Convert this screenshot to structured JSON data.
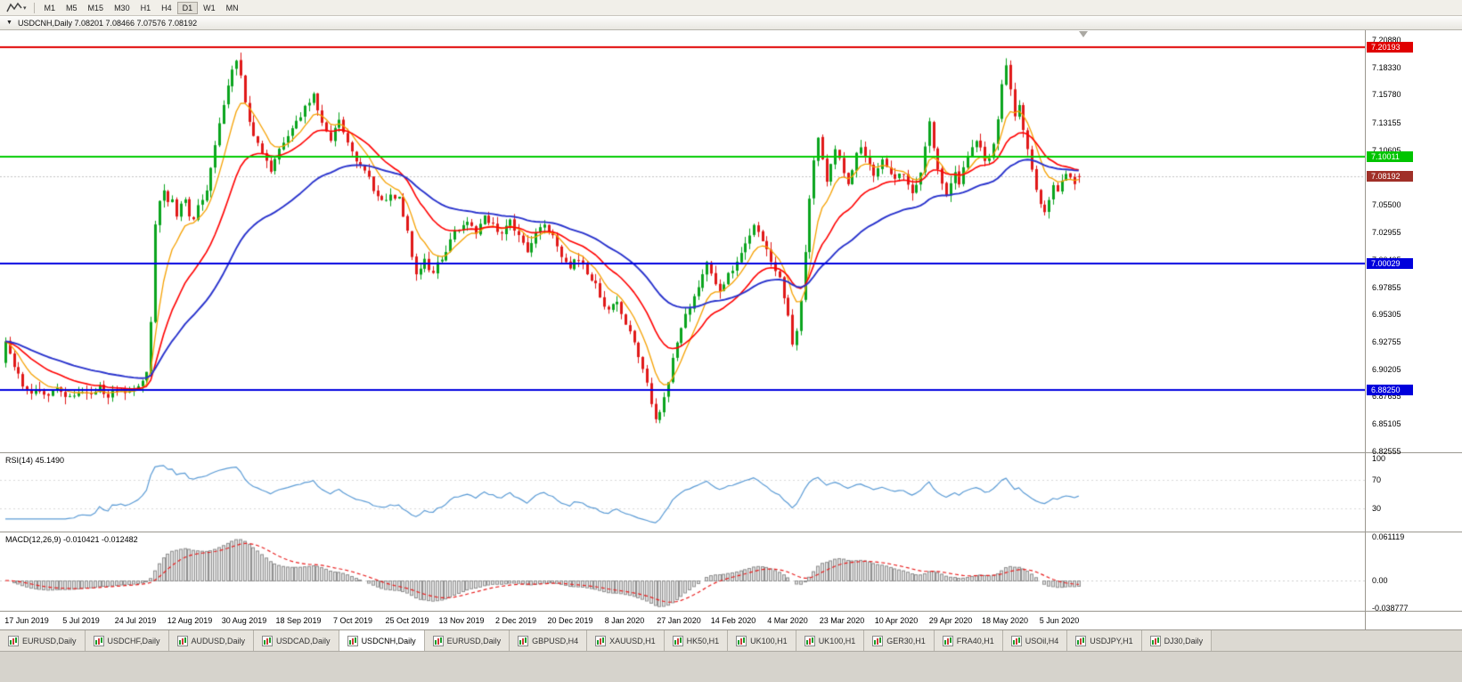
{
  "toolbar": {
    "timeframes": [
      "M1",
      "M5",
      "M15",
      "M30",
      "H1",
      "H4",
      "D1",
      "W1",
      "MN"
    ],
    "active_timeframe": "D1"
  },
  "chart_window": {
    "title": "USDCNH,Daily 7.08201 7.08466 7.07576 7.08192",
    "symbol": "USDCNH",
    "period": "Daily",
    "ohlc": {
      "open": "7.08201",
      "high": "7.08466",
      "low": "7.07576",
      "close": "7.08192"
    }
  },
  "price_axis": {
    "ticks": [
      "7.20880",
      "7.18330",
      "7.15780",
      "7.13155",
      "7.10605",
      "7.08055",
      "7.05500",
      "7.02955",
      "7.00405",
      "6.97855",
      "6.95305",
      "6.92755",
      "6.90205",
      "6.87655",
      "6.85105",
      "6.82555"
    ],
    "tags": [
      {
        "label": "7.20193",
        "value": 7.20193,
        "color": "#e00000",
        "type": "resistance-line"
      },
      {
        "label": "7.10011",
        "value": 7.10011,
        "color": "#00c400",
        "type": "resistance-line"
      },
      {
        "label": "7.08192",
        "value": 7.08192,
        "color": "#a03028",
        "type": "current-price"
      },
      {
        "label": "7.00029",
        "value": 7.00029,
        "color": "#0000dc",
        "type": "support-line"
      },
      {
        "label": "6.88250",
        "value": 6.8825,
        "color": "#0000dc",
        "type": "support-line"
      }
    ]
  },
  "date_axis": {
    "labels": [
      "17 Jun 2019",
      "5 Jul 2019",
      "24 Jul 2019",
      "12 Aug 2019",
      "30 Aug 2019",
      "18 Sep 2019",
      "7 Oct 2019",
      "25 Oct 2019",
      "13 Nov 2019",
      "2 Dec 2019",
      "20 Dec 2019",
      "8 Jan 2020",
      "27 Jan 2020",
      "14 Feb 2020",
      "4 Mar 2020",
      "23 Mar 2020",
      "10 Apr 2020",
      "29 Apr 2020",
      "18 May 2020",
      "5 Jun 2020"
    ]
  },
  "indicators": {
    "rsi": {
      "label": "RSI(14) 45.1490",
      "name": "RSI",
      "period": 14,
      "value": 45.149,
      "axis_labels": [
        "100",
        "70",
        "30"
      ],
      "axis_values": [
        100,
        70,
        30
      ],
      "line_color": "#5b9bd5"
    },
    "macd": {
      "label": "MACD(12,26,9) -0.010421 -0.012482",
      "macd_value": -0.010421,
      "signal_value": -0.012482,
      "axis_labels": [
        "0.061119",
        "0.00",
        "-0.038777"
      ],
      "axis_values": [
        0.061119,
        0,
        -0.038777
      ],
      "histogram_fill": "#e2e2e2",
      "histogram_stroke": "#8f8f8f",
      "signal_color": "#e82020"
    }
  },
  "tabs": {
    "items": [
      "EURUSD,Daily",
      "USDCHF,Daily",
      "AUDUSD,Daily",
      "USDCAD,Daily",
      "USDCNH,Daily",
      "EURUSD,Daily",
      "GBPUSD,H4",
      "XAUUSD,H1",
      "HK50,H1",
      "UK100,H1",
      "UK100,H1",
      "GER30,H1",
      "FRA40,H1",
      "USOil,H4",
      "USDJPY,H1",
      "DJ30,Daily"
    ],
    "active_index": 4
  },
  "chart_data": {
    "type": "candlestick",
    "symbol": "USDCNH",
    "timeframe": "Daily",
    "bull_color": "#0aa41e",
    "bear_color": "#e01818",
    "ma_fast_color": "#f5a000",
    "ma_mid_color": "#ff0000",
    "ma_slow_color": "#2832cc",
    "y_range": {
      "top": 7.2179,
      "bottom": 6.8247
    },
    "num_candles": 252,
    "last_candle": {
      "open": 7.08201,
      "high": 7.08466,
      "low": 7.07576,
      "close": 7.08192
    },
    "hlines": [
      {
        "value": 7.20193,
        "color": "#e00000"
      },
      {
        "value": 7.10011,
        "color": "#00cc00"
      },
      {
        "value": 7.00029,
        "color": "#0000e0"
      },
      {
        "value": 6.8825,
        "color": "#0000e0"
      }
    ],
    "price_path": [
      [
        0,
        6.928
      ],
      [
        2,
        6.904
      ],
      [
        4,
        6.888
      ],
      [
        6,
        6.879
      ],
      [
        8,
        6.884
      ],
      [
        10,
        6.877
      ],
      [
        12,
        6.883
      ],
      [
        14,
        6.879
      ],
      [
        16,
        6.876
      ],
      [
        18,
        6.883
      ],
      [
        20,
        6.878
      ],
      [
        22,
        6.885
      ],
      [
        24,
        6.878
      ],
      [
        26,
        6.882
      ],
      [
        28,
        6.879
      ],
      [
        30,
        6.885
      ],
      [
        32,
        6.891
      ],
      [
        33,
        6.897
      ],
      [
        34,
        6.944
      ],
      [
        35,
        7.04
      ],
      [
        36,
        7.057
      ],
      [
        37,
        7.068
      ],
      [
        38,
        7.055
      ],
      [
        39,
        7.061
      ],
      [
        40,
        7.047
      ],
      [
        41,
        7.055
      ],
      [
        42,
        7.061
      ],
      [
        43,
        7.046
      ],
      [
        44,
        7.041
      ],
      [
        45,
        7.053
      ],
      [
        46,
        7.059
      ],
      [
        47,
        7.071
      ],
      [
        48,
        7.092
      ],
      [
        49,
        7.11
      ],
      [
        50,
        7.13
      ],
      [
        51,
        7.15
      ],
      [
        52,
        7.166
      ],
      [
        53,
        7.179
      ],
      [
        54,
        7.191
      ],
      [
        55,
        7.176
      ],
      [
        56,
        7.151
      ],
      [
        57,
        7.135
      ],
      [
        58,
        7.119
      ],
      [
        59,
        7.111
      ],
      [
        60,
        7.104
      ],
      [
        61,
        7.094
      ],
      [
        62,
        7.087
      ],
      [
        63,
        7.098
      ],
      [
        64,
        7.108
      ],
      [
        65,
        7.116
      ],
      [
        66,
        7.121
      ],
      [
        67,
        7.126
      ],
      [
        68,
        7.131
      ],
      [
        69,
        7.139
      ],
      [
        70,
        7.145
      ],
      [
        71,
        7.151
      ],
      [
        72,
        7.156
      ],
      [
        73,
        7.142
      ],
      [
        74,
        7.134
      ],
      [
        75,
        7.121
      ],
      [
        76,
        7.117
      ],
      [
        77,
        7.126
      ],
      [
        78,
        7.133
      ],
      [
        79,
        7.121
      ],
      [
        80,
        7.111
      ],
      [
        81,
        7.104
      ],
      [
        82,
        7.097
      ],
      [
        84,
        7.089
      ],
      [
        86,
        7.069
      ],
      [
        88,
        7.057
      ],
      [
        90,
        7.067
      ],
      [
        92,
        7.061
      ],
      [
        93,
        7.047
      ],
      [
        94,
        7.029
      ],
      [
        95,
        7.009
      ],
      [
        96,
        6.989
      ],
      [
        97,
        6.996
      ],
      [
        98,
        7.004
      ],
      [
        99,
        6.995
      ],
      [
        100,
        6.991
      ],
      [
        101,
        7.001
      ],
      [
        102,
        7.006
      ],
      [
        103,
        7.013
      ],
      [
        104,
        7.023
      ],
      [
        105,
        7.029
      ],
      [
        106,
        7.033
      ],
      [
        107,
        7.039
      ],
      [
        108,
        7.041
      ],
      [
        109,
        7.033
      ],
      [
        110,
        7.027
      ],
      [
        111,
        7.039
      ],
      [
        112,
        7.047
      ],
      [
        113,
        7.041
      ],
      [
        114,
        7.035
      ],
      [
        115,
        7.029
      ],
      [
        116,
        7.027
      ],
      [
        117,
        7.037
      ],
      [
        118,
        7.043
      ],
      [
        119,
        7.034
      ],
      [
        120,
        7.027
      ],
      [
        121,
        7.019
      ],
      [
        122,
        7.011
      ],
      [
        123,
        7.021
      ],
      [
        124,
        7.029
      ],
      [
        125,
        7.035
      ],
      [
        126,
        7.039
      ],
      [
        127,
        7.031
      ],
      [
        128,
        7.025
      ],
      [
        129,
        7.017
      ],
      [
        130,
        7.009
      ],
      [
        131,
        7.004
      ],
      [
        132,
        6.999
      ],
      [
        133,
        7.003
      ],
      [
        134,
        7.006
      ],
      [
        135,
        6.999
      ],
      [
        136,
        6.992
      ],
      [
        137,
        6.986
      ],
      [
        138,
        6.98
      ],
      [
        139,
        6.971
      ],
      [
        140,
        6.961
      ],
      [
        141,
        6.957
      ],
      [
        142,
        6.96
      ],
      [
        143,
        6.965
      ],
      [
        144,
        6.954
      ],
      [
        145,
        6.944
      ],
      [
        146,
        6.937
      ],
      [
        147,
        6.925
      ],
      [
        148,
        6.914
      ],
      [
        149,
        6.904
      ],
      [
        150,
        6.889
      ],
      [
        151,
        6.867
      ],
      [
        152,
        6.854
      ],
      [
        153,
        6.861
      ],
      [
        154,
        6.875
      ],
      [
        155,
        6.889
      ],
      [
        156,
        6.911
      ],
      [
        157,
        6.929
      ],
      [
        158,
        6.941
      ],
      [
        159,
        6.952
      ],
      [
        160,
        6.961
      ],
      [
        161,
        6.969
      ],
      [
        162,
        6.981
      ],
      [
        163,
        6.991
      ],
      [
        164,
        6.999
      ],
      [
        165,
        6.991
      ],
      [
        166,
        6.981
      ],
      [
        167,
        6.974
      ],
      [
        168,
        6.981
      ],
      [
        169,
        6.989
      ],
      [
        170,
        6.996
      ],
      [
        171,
        7.003
      ],
      [
        172,
        7.011
      ],
      [
        173,
        7.019
      ],
      [
        174,
        7.027
      ],
      [
        175,
        7.035
      ],
      [
        176,
        7.029
      ],
      [
        177,
        7.021
      ],
      [
        178,
        7.013
      ],
      [
        179,
        7.004
      ],
      [
        180,
        6.995
      ],
      [
        181,
        6.985
      ],
      [
        182,
        6.971
      ],
      [
        183,
        6.951
      ],
      [
        184,
        6.924
      ],
      [
        185,
        6.939
      ],
      [
        186,
        6.969
      ],
      [
        187,
        7.009
      ],
      [
        188,
        7.059
      ],
      [
        189,
        7.099
      ],
      [
        190,
        7.119
      ],
      [
        191,
        7.097
      ],
      [
        192,
        7.077
      ],
      [
        193,
        7.091
      ],
      [
        194,
        7.109
      ],
      [
        195,
        7.099
      ],
      [
        196,
        7.087
      ],
      [
        197,
        7.077
      ],
      [
        198,
        7.089
      ],
      [
        199,
        7.101
      ],
      [
        200,
        7.111
      ],
      [
        201,
        7.101
      ],
      [
        202,
        7.091
      ],
      [
        203,
        7.084
      ],
      [
        204,
        7.091
      ],
      [
        205,
        7.099
      ],
      [
        206,
        7.093
      ],
      [
        207,
        7.085
      ],
      [
        208,
        7.079
      ],
      [
        209,
        7.087
      ],
      [
        210,
        7.081
      ],
      [
        211,
        7.074
      ],
      [
        212,
        7.067
      ],
      [
        213,
        7.074
      ],
      [
        214,
        7.087
      ],
      [
        215,
        7.109
      ],
      [
        216,
        7.131
      ],
      [
        217,
        7.111
      ],
      [
        218,
        7.087
      ],
      [
        219,
        7.074
      ],
      [
        220,
        7.067
      ],
      [
        221,
        7.074
      ],
      [
        222,
        7.084
      ],
      [
        223,
        7.077
      ],
      [
        224,
        7.089
      ],
      [
        225,
        7.099
      ],
      [
        226,
        7.107
      ],
      [
        227,
        7.117
      ],
      [
        228,
        7.107
      ],
      [
        229,
        7.094
      ],
      [
        230,
        7.099
      ],
      [
        231,
        7.111
      ],
      [
        232,
        7.134
      ],
      [
        233,
        7.169
      ],
      [
        234,
        7.187
      ],
      [
        235,
        7.164
      ],
      [
        236,
        7.139
      ],
      [
        237,
        7.147
      ],
      [
        238,
        7.127
      ],
      [
        239,
        7.107
      ],
      [
        240,
        7.087
      ],
      [
        241,
        7.067
      ],
      [
        242,
        7.057
      ],
      [
        243,
        7.051
      ],
      [
        244,
        7.061
      ],
      [
        245,
        7.071
      ],
      [
        246,
        7.065
      ],
      [
        247,
        7.077
      ],
      [
        248,
        7.085
      ],
      [
        249,
        7.079
      ],
      [
        250,
        7.075
      ],
      [
        251,
        7.082
      ]
    ]
  }
}
